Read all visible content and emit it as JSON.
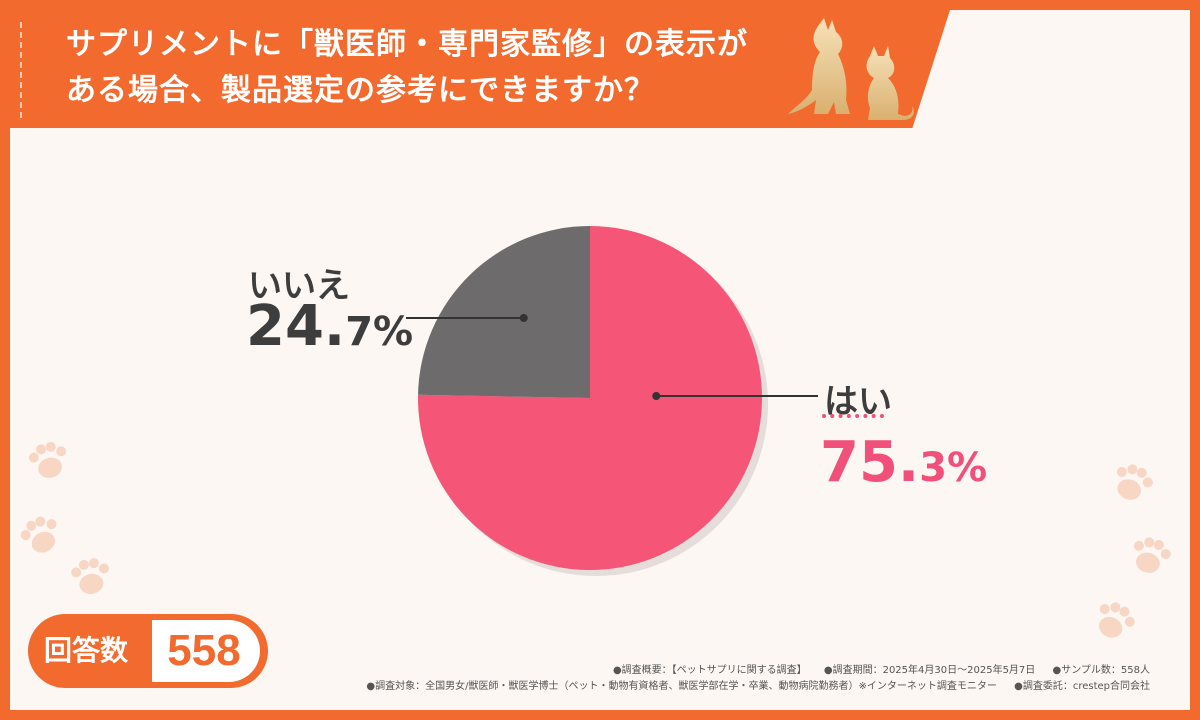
{
  "title": {
    "line1": "サプリメントに「獣医師・専門家監修」の表示が",
    "line2": "ある場合、製品選定の参考にできますか？"
  },
  "chart_data": {
    "type": "pie",
    "slices": [
      {
        "label": "はい",
        "value": 75.3,
        "value_main": "75.",
        "value_rest": "3%",
        "color": "#f55577"
      },
      {
        "label": "いいえ",
        "value": 24.7,
        "value_main": "24.",
        "value_rest": "7%",
        "color": "#6e6b6c"
      }
    ]
  },
  "sample": {
    "label": "回答数",
    "value": "558"
  },
  "footer": {
    "overview": "●調査概要：【ペットサプリに関する調査】",
    "period": "●調査期間：2025年4月30日～2025年5月7日",
    "sample_size": "●サンプル数：558人",
    "target": "●調査対象：全国男女/獣医師・獣医学博士（ペット・動物有資格者、獣医学部在学・卒業、動物病院勤務者）※インターネット調査モニター",
    "commission": "●調査委託：crestep合同会社"
  },
  "colors": {
    "accent": "#f26a2e",
    "yes": "#f55577",
    "no": "#6e6b6c"
  },
  "icons": [
    "dog-cat-silhouette-icon",
    "paw-print-icon"
  ]
}
